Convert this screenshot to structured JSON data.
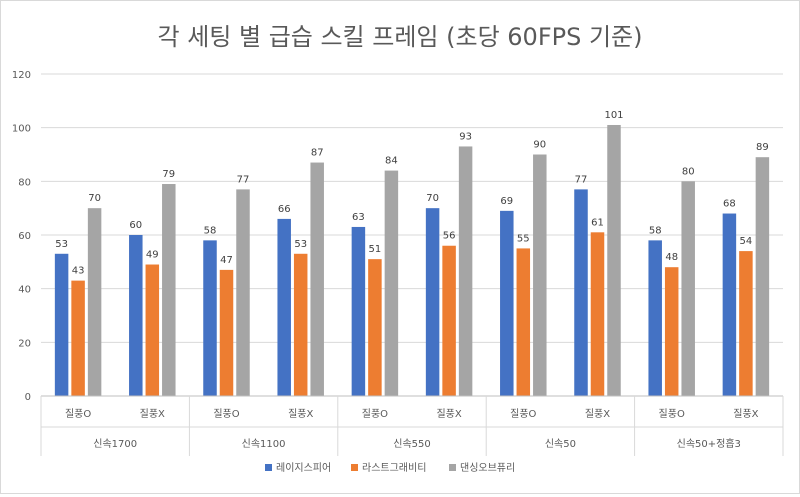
{
  "chart_data": {
    "type": "bar",
    "title": "각 세팅 별 급습 스킬 프레임 (초당 60FPS 기준)",
    "xlabel": "",
    "ylabel": "",
    "ylim": [
      0,
      120
    ],
    "yticks": [
      "0",
      "20",
      "40",
      "60",
      "80",
      "100",
      "120"
    ],
    "grid": true,
    "legend_position": "bottom",
    "groups": [
      "신속1700",
      "신속1100",
      "신속550",
      "신속50",
      "신속50+정흡3"
    ],
    "categories": [
      "질풍O",
      "질풍X",
      "질풍O",
      "질풍X",
      "질풍O",
      "질풍X",
      "질풍O",
      "질풍X",
      "질풍O",
      "질풍X"
    ],
    "series": [
      {
        "name": "레이지스피어",
        "color": "#4472c4",
        "values": [
          53,
          60,
          58,
          66,
          63,
          70,
          69,
          77,
          58,
          68
        ]
      },
      {
        "name": "라스트그래비티",
        "color": "#ed7d31",
        "values": [
          43,
          49,
          47,
          53,
          51,
          56,
          55,
          61,
          48,
          54
        ]
      },
      {
        "name": "댄싱오브퓨리",
        "color": "#a5a5a5",
        "values": [
          70,
          79,
          77,
          87,
          84,
          93,
          90,
          101,
          80,
          89
        ]
      }
    ]
  }
}
